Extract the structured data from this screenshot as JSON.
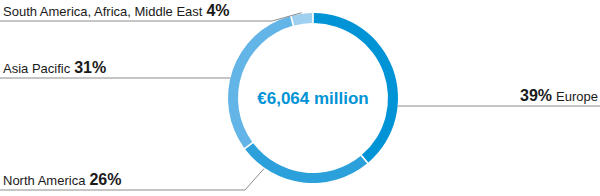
{
  "chart_data": {
    "type": "pie",
    "categories": [
      "Europe",
      "North America",
      "Asia Pacific",
      "South America, Africa, Middle East"
    ],
    "values": [
      39,
      26,
      31,
      4
    ],
    "value_labels": [
      "39%",
      "26%",
      "31%",
      "4%"
    ],
    "colors": [
      "#0093d6",
      "#2ba0db",
      "#62b5e6",
      "#9fd0f0"
    ],
    "data_labels": true,
    "annotations": [
      "€6,064 million"
    ]
  }
}
